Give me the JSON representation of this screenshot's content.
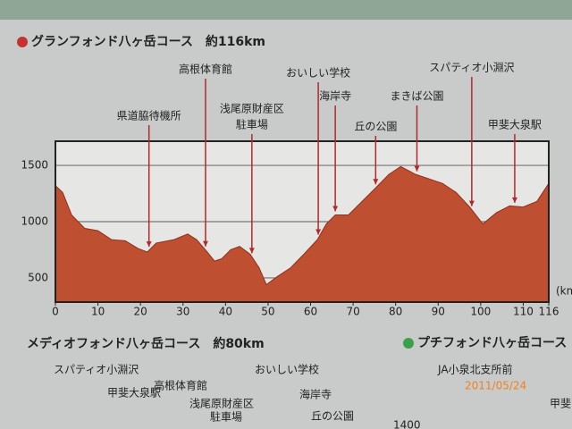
{
  "chart_data": {
    "type": "area",
    "title": "グランフォンド八ヶ岳コース　約116km",
    "x_unit": "(km",
    "x": [
      0,
      1.7,
      3.8,
      6.9,
      10,
      13.2,
      16.4,
      19.5,
      21.6,
      23.7,
      27.9,
      31.1,
      33.2,
      35.7,
      37.4,
      39.1,
      41.2,
      43.3,
      45.8,
      47.9,
      49.6,
      52.1,
      55.3,
      58.4,
      61.6,
      63.7,
      65.8,
      68.9,
      72.1,
      75.3,
      78.4,
      81.2,
      84.7,
      87.9,
      91.0,
      94.2,
      97.4,
      100.5,
      103.7,
      106.8,
      110.0,
      113.2,
      116
    ],
    "values": [
      1320,
      1260,
      1060,
      940,
      920,
      840,
      830,
      760,
      730,
      810,
      840,
      890,
      840,
      730,
      650,
      670,
      750,
      780,
      710,
      590,
      440,
      510,
      590,
      710,
      840,
      980,
      1060,
      1060,
      1180,
      1300,
      1420,
      1490,
      1420,
      1380,
      1340,
      1260,
      1130,
      980,
      1080,
      1140,
      1130,
      1180,
      1340
    ],
    "color": "#bf4f31",
    "xlim": [
      0,
      116
    ],
    "xticks": [
      0,
      10,
      20,
      30,
      40,
      50,
      60,
      70,
      80,
      90,
      100,
      110,
      116
    ],
    "ylim": [
      285,
      1715
    ],
    "yticks": [
      500,
      1000,
      1500
    ],
    "grid": true,
    "annotations": [
      {
        "lines": [
          "県道脇待機所"
        ],
        "x": 22
      },
      {
        "lines": [
          "高根体育館"
        ],
        "x": 35.3
      },
      {
        "lines": [
          "浅尾原財産区",
          "駐車場"
        ],
        "x": 46.2
      },
      {
        "lines": [
          "おいしい学校"
        ],
        "x": 61.8
      },
      {
        "lines": [
          "海岸寺"
        ],
        "x": 65.8
      },
      {
        "lines": [
          "丘の公園"
        ],
        "x": 75.3
      },
      {
        "lines": [
          "まきば公園"
        ],
        "x": 85
      },
      {
        "lines": [
          "スパティオ小淵沢"
        ],
        "x": 97.9
      },
      {
        "lines": [
          "甲斐大泉駅"
        ],
        "x": 108
      }
    ]
  },
  "medio_course": {
    "title": "メディオフォンド八ヶ岳コース　約80km",
    "labels": [
      "スパティオ小淵沢",
      "高根体育館",
      "甲斐大泉駅",
      "浅尾原財産区",
      "駐車場",
      "おいしい学校",
      "海岸寺",
      "丘の公園"
    ]
  },
  "petit_course": {
    "title": "プチフォンド八ヶ岳コース",
    "labels": [
      "JA小泉北支所前",
      "甲斐"
    ],
    "tick": "1400"
  },
  "photo_timestamp": "2011/05/24"
}
